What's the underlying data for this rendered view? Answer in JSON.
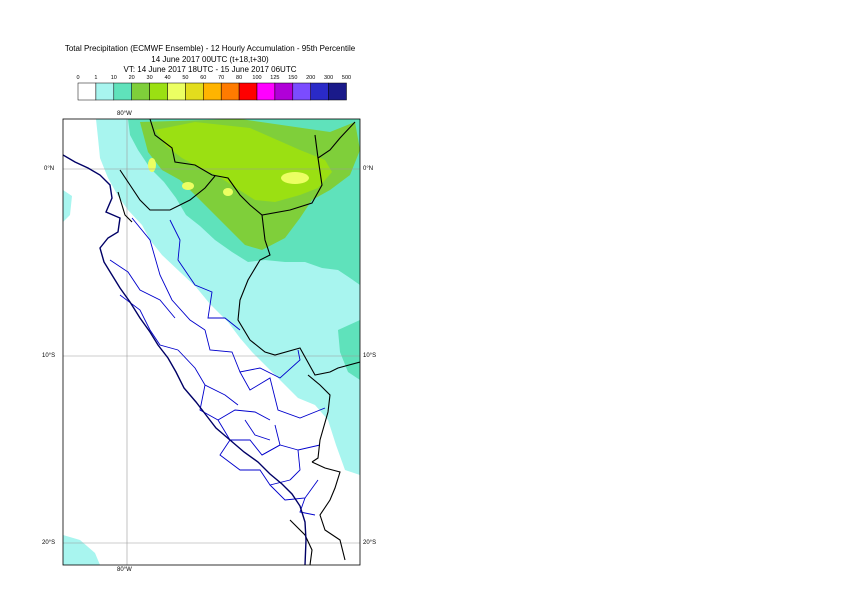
{
  "header": {
    "title": "Total Precipitation (ECMWF Ensemble) - 12 Hourly Accumulation - 95th Percentile",
    "base_time": "14 June 2017 00UTC (t+18,t+30)",
    "valid_time": "VT: 14 June 2017 18UTC - 15 June 2017 06UTC"
  },
  "legend": {
    "thresholds": [
      "0",
      "1",
      "10",
      "20",
      "30",
      "40",
      "50",
      "60",
      "70",
      "80",
      "100",
      "125",
      "150",
      "200",
      "300",
      "500"
    ],
    "colors": [
      "#ffffff",
      "#a8f5ef",
      "#5fe2bb",
      "#7fcf3a",
      "#9be012",
      "#ecff62",
      "#e3dd1d",
      "#ffb400",
      "#ff7b00",
      "#ff0000",
      "#ff00ff",
      "#b000d8",
      "#7b4cff",
      "#2a2ac8",
      "#1a1a8a"
    ]
  },
  "map": {
    "lat_labels": {
      "eq": "0°N",
      "s10": "10°S",
      "s20": "20°S"
    },
    "lon_labels": {
      "w80": "80°W"
    },
    "colors": {
      "land_boundary": "#000000",
      "admin_boundary": "#0000cc",
      "coast": "#000066",
      "grid": "#9a9a9a",
      "precip_light": "#a8f5ef",
      "precip_moderate": "#5fe2bb",
      "precip_heavy": "#7fcf3a",
      "precip_very_heavy": "#9be012",
      "precip_extreme": "#ecff62"
    }
  }
}
